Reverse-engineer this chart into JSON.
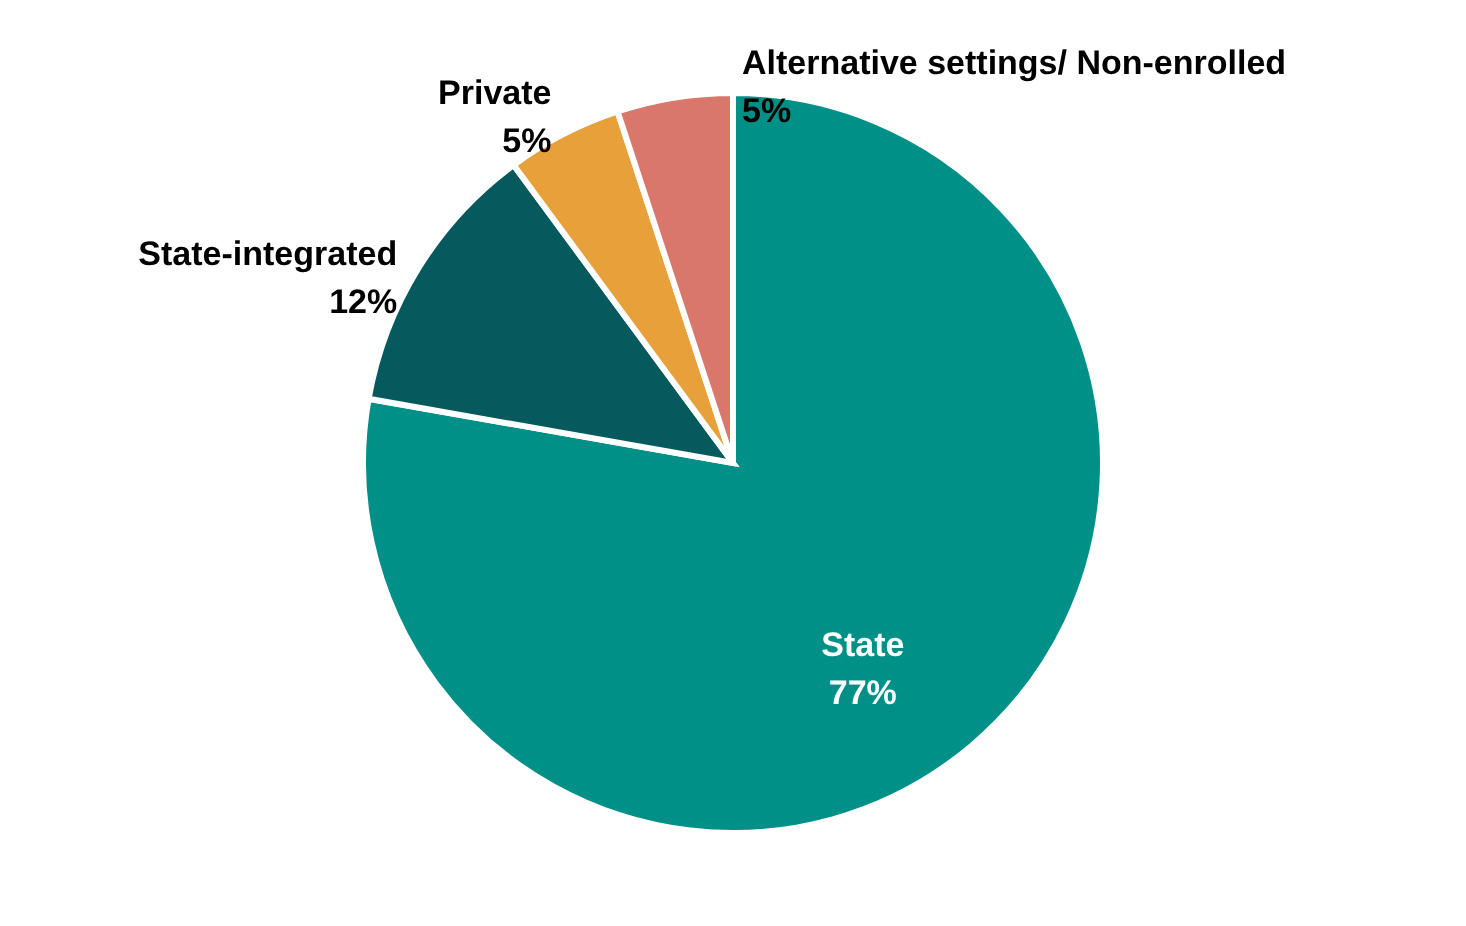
{
  "chart_data": {
    "type": "pie",
    "categories": [
      "State",
      "State-integrated",
      "Private",
      "Alternative settings/ Non-enrolled"
    ],
    "values": [
      77,
      12,
      5,
      5
    ],
    "value_labels": [
      "77%",
      "12%",
      "5%",
      "5%"
    ],
    "colors": [
      "#009087",
      "#065a5e",
      "#e8a03a",
      "#d9776a"
    ]
  }
}
